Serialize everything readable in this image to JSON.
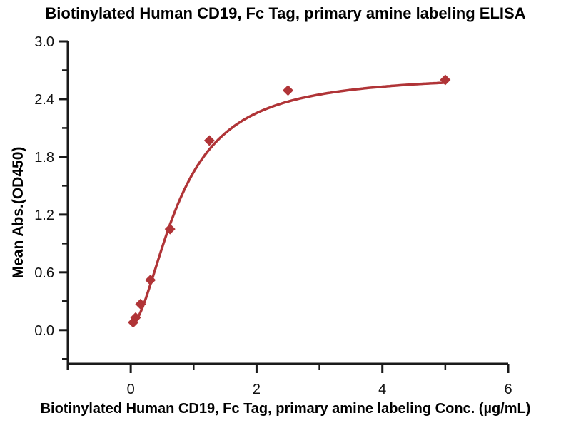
{
  "chart_data": {
    "type": "scatter",
    "title": "Biotinylated Human CD19, Fc Tag, primary amine labeling ELISA",
    "xlabel": "Biotinylated Human CD19, Fc Tag, primary amine labeling Conc. (µg/mL)",
    "ylabel": "Mean Abs.(OD450)",
    "x": [
      0.039,
      0.078,
      0.156,
      0.313,
      0.625,
      1.25,
      2.5,
      5
    ],
    "y": [
      0.08,
      0.13,
      0.27,
      0.52,
      1.05,
      1.97,
      2.49,
      2.6
    ],
    "xlim": [
      -1,
      6
    ],
    "ylim": [
      -0.35,
      3.0
    ],
    "x_major_ticks": [
      0,
      2,
      4,
      6
    ],
    "x_minor_ticks": [
      1,
      3,
      5
    ],
    "y_major_ticks": [
      0.0,
      0.6,
      1.2,
      1.8,
      2.4,
      3.0
    ],
    "y_minor_ticks": [
      -0.3,
      0.3,
      0.9,
      1.5,
      2.1,
      2.7
    ],
    "curve_fit_4pl": {
      "a": 0.05,
      "d": 2.66,
      "c": 0.78,
      "b": 1.8
    },
    "curve_x_range": [
      0.039,
      5
    ],
    "marker": "diamond",
    "grid": false,
    "legend": null,
    "colors": {
      "curve": "#b03437",
      "marker": "#b03437",
      "axis": "#1a1a1a",
      "text": "#000000",
      "background": "#ffffff"
    }
  }
}
